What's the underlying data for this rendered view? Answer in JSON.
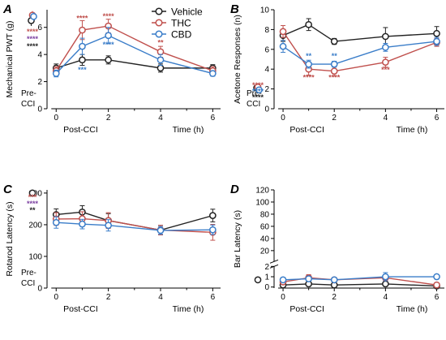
{
  "colors": {
    "Vehicle": "#222222",
    "THC": "#c0504d",
    "CBD": "#3a7dc9",
    "THC_fill": "#f2c9c8",
    "CBD_fill": "#c9dcf2",
    "purple_star": "#7b3fa0"
  },
  "legend": {
    "items": [
      {
        "name": "Vehicle",
        "color_key": "Vehicle"
      },
      {
        "name": "THC",
        "color_key": "THC"
      },
      {
        "name": "CBD",
        "color_key": "CBD"
      }
    ]
  },
  "chart_data": [
    {
      "panel": "A",
      "type": "line",
      "xlabel": "Time (h)",
      "ylabel": "Mechanical PWT (g)",
      "x_tick_labels": [
        "0",
        "2",
        "4",
        "6"
      ],
      "x_ticks": [
        0,
        2,
        4,
        6
      ],
      "xlim": [
        -0.35,
        6.3
      ],
      "y_ticks": [
        0,
        2,
        4,
        6
      ],
      "ylim": [
        0,
        7.3
      ],
      "prebaseline_label": "Pre-CCI",
      "postcci_label": "Post-CCI",
      "pre_points": [
        {
          "series": "Vehicle",
          "y": 6.5,
          "err": 0.4
        },
        {
          "series": "THC",
          "y": 6.9,
          "err": 0.3
        },
        {
          "series": "CBD",
          "y": 6.8,
          "err": 0.3
        }
      ],
      "pre_stars": [
        {
          "text": "****",
          "color_key": "THC"
        },
        {
          "text": "****",
          "color_key": "purple_star"
        },
        {
          "text": "****",
          "color_key": "Vehicle"
        }
      ],
      "x": [
        0,
        1,
        2,
        4,
        6
      ],
      "series": [
        {
          "name": "Vehicle",
          "values": [
            3.0,
            3.6,
            3.6,
            3.0,
            3.0
          ],
          "errors": [
            0.3,
            0.4,
            0.3,
            0.3,
            0.25
          ]
        },
        {
          "name": "THC",
          "values": [
            2.8,
            5.8,
            6.1,
            4.2,
            2.8
          ],
          "errors": [
            0.3,
            0.7,
            0.5,
            0.4,
            0.3
          ]
        },
        {
          "name": "CBD",
          "values": [
            2.6,
            4.6,
            5.4,
            3.6,
            2.6
          ],
          "errors": [
            0.25,
            0.6,
            0.6,
            0.4,
            0.2
          ]
        }
      ],
      "annotations": [
        {
          "x": 1,
          "y": 6.5,
          "text": "****",
          "color_key": "THC"
        },
        {
          "x": 2,
          "y": 6.65,
          "text": "****",
          "color_key": "THC"
        },
        {
          "x": 4,
          "y": 4.7,
          "text": "**",
          "color_key": "THC"
        },
        {
          "x": 2,
          "y": 4.55,
          "text": "****",
          "color_key": "CBD"
        },
        {
          "x": 1,
          "y": 2.7,
          "text": "***",
          "color_key": "CBD"
        }
      ]
    },
    {
      "panel": "B",
      "type": "line",
      "xlabel": "Time (h)",
      "ylabel": "Acetone Responses (n)",
      "x_tick_labels": [
        "0",
        "2",
        "4",
        "6"
      ],
      "x_ticks": [
        0,
        2,
        4,
        6
      ],
      "xlim": [
        -0.35,
        6.3
      ],
      "y_ticks": [
        0,
        2,
        4,
        6,
        8,
        10
      ],
      "ylim": [
        0,
        10
      ],
      "prebaseline_label": "Pre-CCI",
      "postcci_label": "Post-CCI",
      "pre_points": [
        {
          "series": "Vehicle",
          "y": 2.1,
          "err": 0.3
        },
        {
          "series": "THC",
          "y": 2.2,
          "err": 0.3
        },
        {
          "series": "CBD",
          "y": 1.9,
          "err": 0.3
        }
      ],
      "pre_stars": [
        {
          "text": "****",
          "color_key": "THC"
        },
        {
          "text": "****",
          "color_key": "CBD"
        },
        {
          "text": "****",
          "color_key": "Vehicle"
        }
      ],
      "x": [
        0,
        1,
        2,
        4,
        6
      ],
      "series": [
        {
          "name": "Vehicle",
          "values": [
            7.4,
            8.5,
            6.8,
            7.3,
            7.6
          ],
          "errors": [
            0.6,
            0.6,
            0.3,
            0.9,
            0.7
          ]
        },
        {
          "name": "THC",
          "values": [
            7.8,
            4.0,
            3.8,
            4.7,
            6.7
          ],
          "errors": [
            0.6,
            0.6,
            0.5,
            0.5,
            0.4
          ]
        },
        {
          "name": "CBD",
          "values": [
            6.3,
            4.5,
            4.5,
            6.2,
            6.8
          ],
          "errors": [
            0.6,
            0.4,
            0.3,
            0.4,
            0.4
          ]
        }
      ],
      "annotations": [
        {
          "x": 1,
          "y": 5.1,
          "text": "**",
          "color_key": "CBD"
        },
        {
          "x": 2,
          "y": 5.1,
          "text": "**",
          "color_key": "CBD"
        },
        {
          "x": 1,
          "y": 2.9,
          "text": "****",
          "color_key": "THC"
        },
        {
          "x": 2,
          "y": 2.9,
          "text": "****",
          "color_key": "THC"
        },
        {
          "x": 4,
          "y": 3.7,
          "text": "***",
          "color_key": "THC"
        }
      ]
    },
    {
      "panel": "C",
      "type": "line",
      "xlabel": "Time (h)",
      "ylabel": "Rotarod Latency (s)",
      "x_tick_labels": [
        "0",
        "2",
        "4",
        "6"
      ],
      "x_ticks": [
        0,
        2,
        4,
        6
      ],
      "xlim": [
        -0.35,
        6.3
      ],
      "y_ticks": [
        0,
        100,
        200,
        300
      ],
      "ylim": [
        0,
        310
      ],
      "prebaseline_label": "Pre-CCI",
      "postcci_label": "Post-CCI",
      "pre_points": [
        {
          "series": "Vehicle",
          "y": 300,
          "err": 0
        }
      ],
      "pre_stars": [
        {
          "text": "***",
          "color_key": "THC"
        },
        {
          "text": "****",
          "color_key": "purple_star"
        },
        {
          "text": "**",
          "color_key": "Vehicle"
        }
      ],
      "x": [
        0,
        1,
        2,
        4,
        6
      ],
      "series": [
        {
          "name": "Vehicle",
          "values": [
            232,
            240,
            213,
            183,
            229
          ],
          "errors": [
            18,
            20,
            22,
            15,
            20
          ]
        },
        {
          "name": "THC",
          "values": [
            218,
            219,
            213,
            183,
            176
          ],
          "errors": [
            20,
            22,
            25,
            15,
            25
          ]
        },
        {
          "name": "CBD",
          "values": [
            207,
            202,
            198,
            182,
            184
          ],
          "errors": [
            18,
            15,
            18,
            12,
            15
          ]
        }
      ],
      "annotations": []
    },
    {
      "panel": "D",
      "type": "line",
      "xlabel": "Time (h)",
      "ylabel": "Bar Latency (s)",
      "x_tick_labels": [
        "0",
        "2",
        "4",
        "6"
      ],
      "x_ticks": [
        0,
        2,
        4,
        6
      ],
      "xlim": [
        -0.35,
        6.3
      ],
      "upper_ticks": [
        20,
        40,
        60,
        80,
        100,
        120
      ],
      "upper_ylim": [
        2,
        120
      ],
      "lower_ticks": [
        0,
        1,
        2
      ],
      "lower_ylim": [
        -0.1,
        2
      ],
      "postcci_label": "Post-CCI",
      "pre_points": [
        {
          "series": "Vehicle",
          "y": 0.7,
          "err": 0
        }
      ],
      "x": [
        0,
        1,
        2,
        4,
        6
      ],
      "series": [
        {
          "name": "Vehicle",
          "values": [
            0.2,
            0.3,
            0.2,
            0.3,
            0.1
          ],
          "errors": [
            0.1,
            0.2,
            0.1,
            0.2,
            0.05
          ]
        },
        {
          "name": "THC",
          "values": [
            0.5,
            0.9,
            0.7,
            0.9,
            0.2
          ],
          "errors": [
            0.2,
            0.3,
            0.2,
            0.3,
            0.1
          ]
        },
        {
          "name": "CBD",
          "values": [
            0.7,
            0.8,
            0.7,
            1.0,
            1.0
          ],
          "errors": [
            0.2,
            0.2,
            0.2,
            0.4,
            0.2
          ]
        }
      ],
      "annotations": []
    }
  ]
}
